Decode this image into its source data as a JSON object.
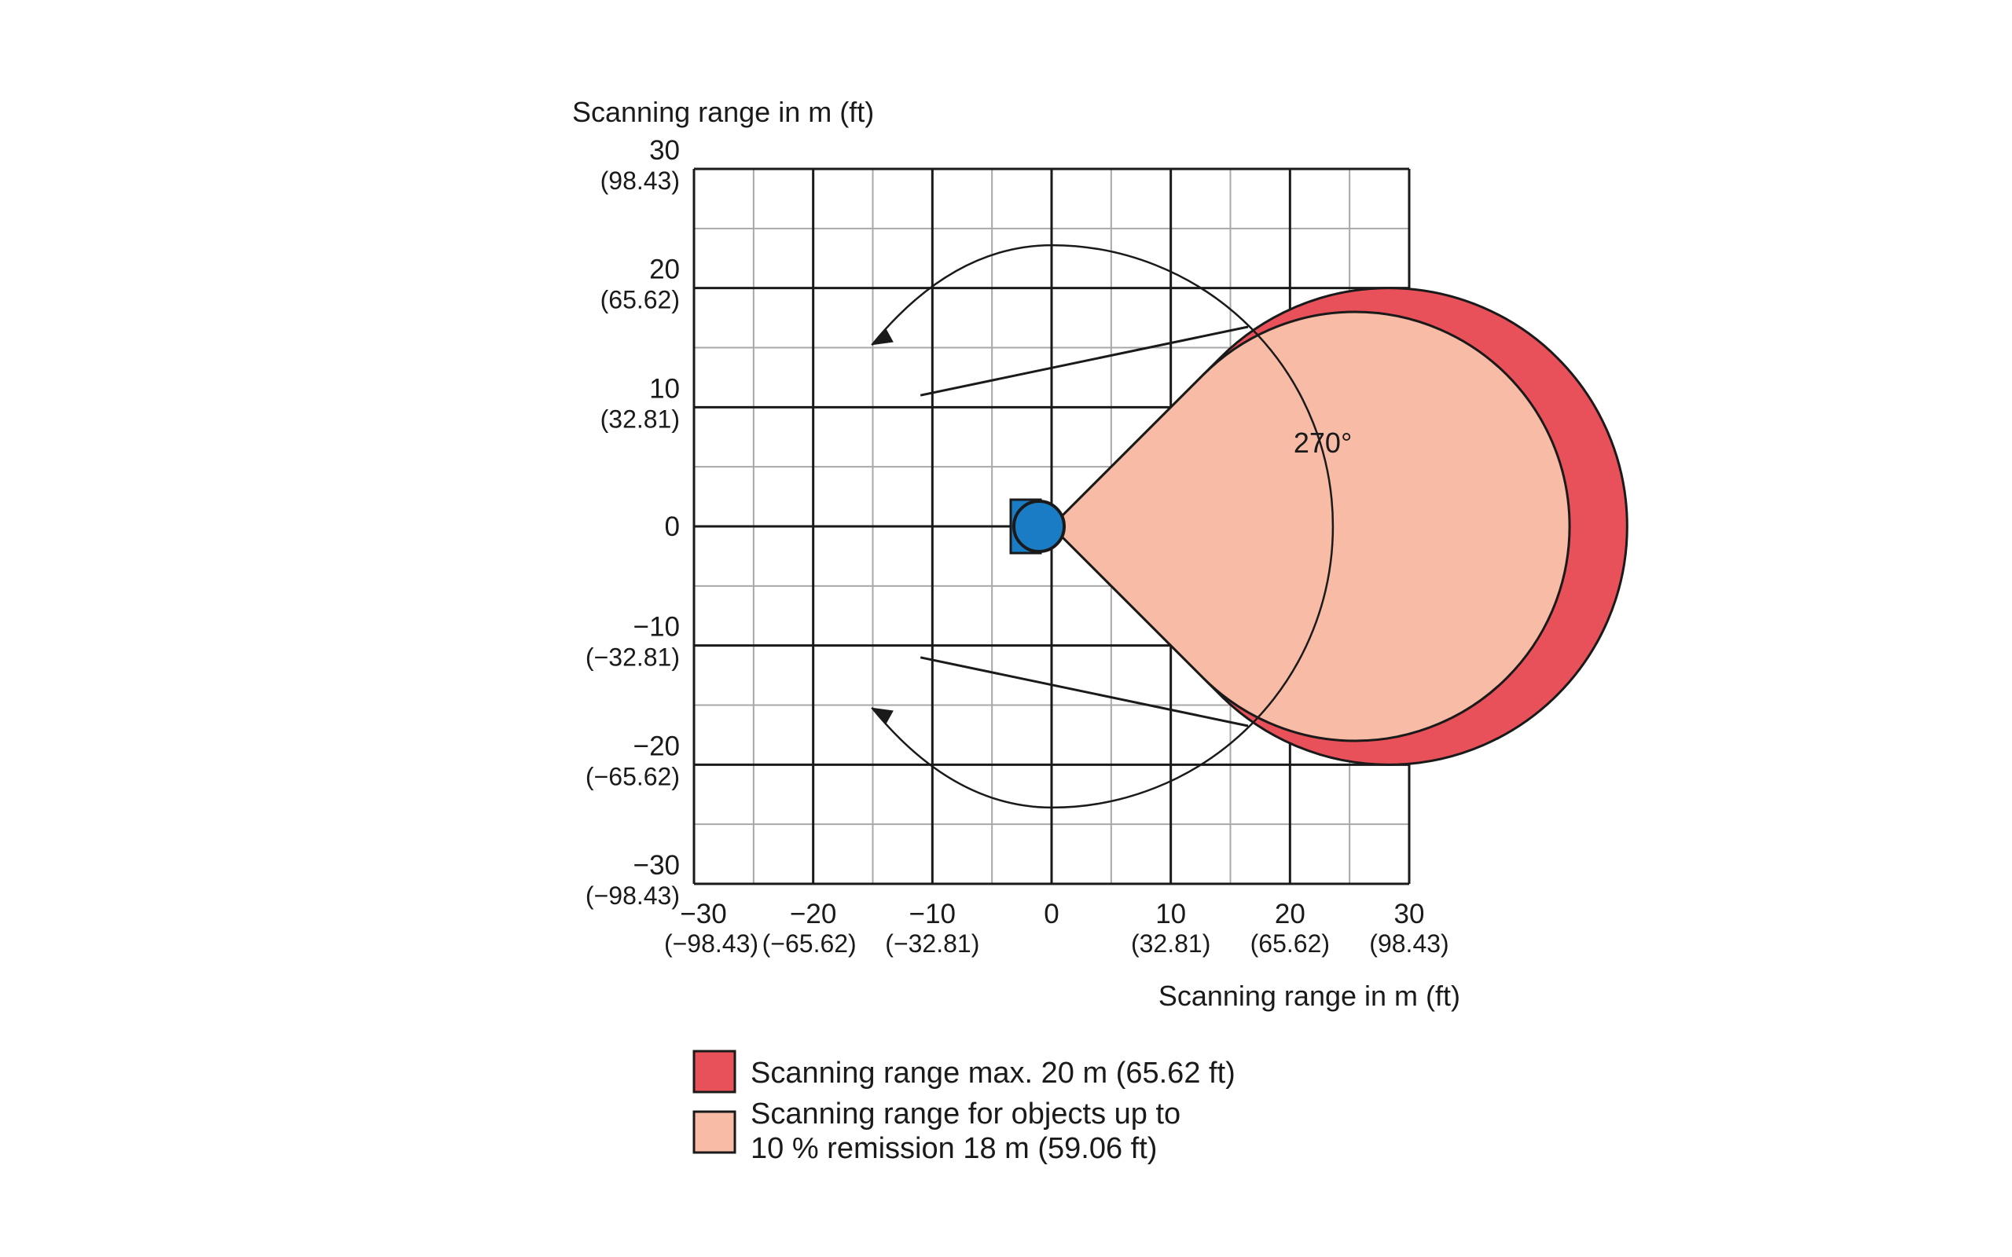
{
  "chart_data": {
    "type": "area",
    "title": "",
    "ylabel": "Scanning range in m (ft)",
    "xlabel": "Scanning range in m (ft)",
    "xlim": [
      -30,
      30
    ],
    "ylim": [
      -30,
      30
    ],
    "grid": true,
    "x_ticks": [
      {
        "m": "−30",
        "ft": "(−98.43)"
      },
      {
        "m": "−20",
        "ft": "(−65.62)"
      },
      {
        "m": "−10",
        "ft": "(−32.81)"
      },
      {
        "m": "0",
        "ft": ""
      },
      {
        "m": "10",
        "ft": "(32.81)"
      },
      {
        "m": "20",
        "ft": "(65.62)"
      },
      {
        "m": "30",
        "ft": "(98.43)"
      }
    ],
    "y_ticks": [
      {
        "m": "30",
        "ft": "(98.43)"
      },
      {
        "m": "20",
        "ft": "(65.62)"
      },
      {
        "m": "10",
        "ft": "(32.81)"
      },
      {
        "m": "0",
        "ft": ""
      },
      {
        "m": "−10",
        "ft": "(−32.81)"
      },
      {
        "m": "−20",
        "ft": "(−65.62)"
      },
      {
        "m": "−30",
        "ft": "(−98.43)"
      }
    ],
    "scan_angle_deg": 270,
    "angle_label": "270°",
    "series": [
      {
        "name": "Scanning range max. 20 m (65.62 ft)",
        "radius_m": 20,
        "color": "#e8515a"
      },
      {
        "name": "Scanning range for objects up to 10 % remission 18 m (59.06 ft)",
        "radius_m": 18,
        "color": "#f7bba6"
      }
    ]
  },
  "legend": [
    {
      "color": "#e8515a",
      "lines": [
        "Scanning range max. 20 m (65.62 ft)"
      ]
    },
    {
      "color": "#f7bba6",
      "lines": [
        "Scanning range for objects up to",
        "10 % remission 18 m (59.06 ft)"
      ]
    }
  ],
  "colors": {
    "grid_major": "#1a1a1a",
    "grid_minor": "#a8a8a8",
    "sensor": "#1a7cc4",
    "outline": "#1a1a1a"
  },
  "sensor_icon": "laser-scanner-icon"
}
